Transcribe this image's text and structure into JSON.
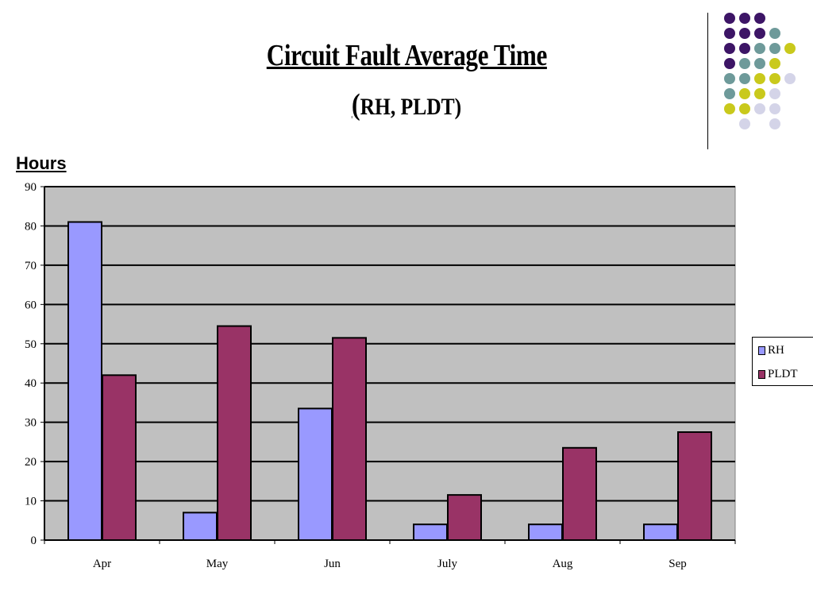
{
  "slide": {
    "title": "Circuit Fault Average Time",
    "subtitle_open": "(",
    "subtitle_text": "RH, PLDT",
    "subtitle_close": ")"
  },
  "chart_data": {
    "type": "bar",
    "title": "",
    "ylabel": "Hours",
    "xlabel": "",
    "categories": [
      "Apr",
      "May",
      "Jun",
      "July",
      "Aug",
      "Sep"
    ],
    "series": [
      {
        "name": "RH",
        "color": "#9999ff",
        "values": [
          81,
          7,
          33.5,
          4,
          4,
          4
        ]
      },
      {
        "name": "PLDT",
        "color": "#993366",
        "values": [
          42,
          54.5,
          51.5,
          11.5,
          23.5,
          27.5
        ]
      }
    ],
    "ylim": [
      0,
      90
    ],
    "yticks": [
      0,
      10,
      20,
      30,
      40,
      50,
      60,
      70,
      80,
      90
    ],
    "plot_background": "#c0c0c0",
    "grid": true,
    "legend_position": "right"
  },
  "decoration": {
    "dot_colors": {
      "purple": "#3d1566",
      "teal": "#6e9a9a",
      "yellow": "#c9c91c",
      "lavender": "#d4d4e8"
    }
  }
}
